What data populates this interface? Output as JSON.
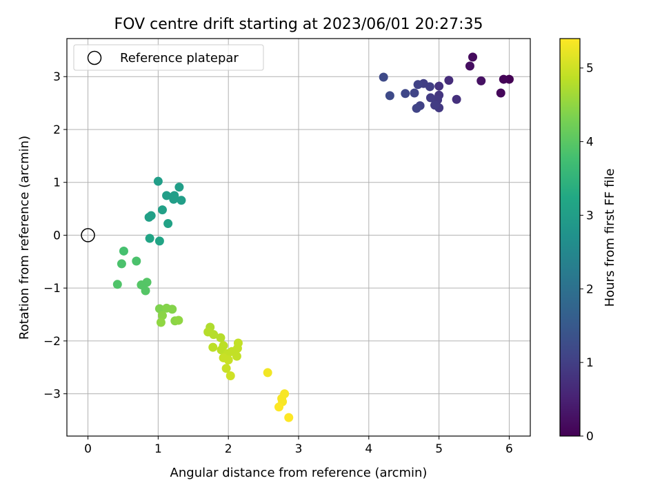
{
  "chart_data": {
    "type": "scatter",
    "title": "FOV centre drift starting at 2023/06/01 20:27:35",
    "xlabel": "Angular distance from reference (arcmin)",
    "ylabel": "Rotation from reference (arcmin)",
    "xlim": [
      -0.3,
      6.3
    ],
    "ylim": [
      -3.8,
      3.72
    ],
    "xticks": [
      0,
      1,
      2,
      3,
      4,
      5,
      6
    ],
    "yticks": [
      -3,
      -2,
      -1,
      0,
      1,
      2,
      3
    ],
    "xtick_labels": [
      "0",
      "1",
      "2",
      "3",
      "4",
      "5",
      "6"
    ],
    "ytick_labels": [
      "−3",
      "−2",
      "−1",
      "0",
      "1",
      "2",
      "3"
    ],
    "grid": true,
    "legend": {
      "position": "top-left",
      "entries": [
        {
          "label": "Reference platepar",
          "marker": "open-circle",
          "color": "#000000"
        }
      ]
    },
    "reference_point": {
      "x": 0,
      "y": 0
    },
    "colorbar": {
      "label": "Hours from first FF file",
      "colormap": "viridis",
      "range": [
        0,
        5.4
      ],
      "ticks": [
        0,
        1,
        2,
        3,
        4,
        5
      ],
      "tick_labels": [
        "0",
        "1",
        "2",
        "3",
        "4",
        "5"
      ]
    },
    "points": [
      {
        "x": 6.0,
        "y": 2.95,
        "t": 0.0
      },
      {
        "x": 5.92,
        "y": 2.95,
        "t": 0.05
      },
      {
        "x": 5.88,
        "y": 2.69,
        "t": 0.1
      },
      {
        "x": 5.48,
        "y": 3.37,
        "t": 0.15
      },
      {
        "x": 5.44,
        "y": 3.2,
        "t": 0.2
      },
      {
        "x": 5.6,
        "y": 2.92,
        "t": 0.25
      },
      {
        "x": 5.14,
        "y": 2.93,
        "t": 0.7
      },
      {
        "x": 5.25,
        "y": 2.57,
        "t": 0.75
      },
      {
        "x": 5.0,
        "y": 2.82,
        "t": 0.8
      },
      {
        "x": 5.0,
        "y": 2.65,
        "t": 0.85
      },
      {
        "x": 4.98,
        "y": 2.56,
        "t": 0.9
      },
      {
        "x": 5.0,
        "y": 2.41,
        "t": 0.9
      },
      {
        "x": 4.94,
        "y": 2.46,
        "t": 0.95
      },
      {
        "x": 4.88,
        "y": 2.6,
        "t": 0.95
      },
      {
        "x": 4.87,
        "y": 2.81,
        "t": 1.0
      },
      {
        "x": 4.78,
        "y": 2.87,
        "t": 1.0
      },
      {
        "x": 4.7,
        "y": 2.85,
        "t": 1.05
      },
      {
        "x": 4.73,
        "y": 2.45,
        "t": 1.05
      },
      {
        "x": 4.68,
        "y": 2.4,
        "t": 1.1
      },
      {
        "x": 4.65,
        "y": 2.69,
        "t": 1.1
      },
      {
        "x": 4.52,
        "y": 2.68,
        "t": 1.15
      },
      {
        "x": 4.3,
        "y": 2.64,
        "t": 1.2
      },
      {
        "x": 4.21,
        "y": 2.99,
        "t": 1.2
      },
      {
        "x": 1.0,
        "y": 1.02,
        "t": 3.0
      },
      {
        "x": 1.3,
        "y": 0.91,
        "t": 3.0
      },
      {
        "x": 1.23,
        "y": 0.75,
        "t": 3.0
      },
      {
        "x": 1.12,
        "y": 0.75,
        "t": 3.0
      },
      {
        "x": 1.22,
        "y": 0.68,
        "t": 3.0
      },
      {
        "x": 1.33,
        "y": 0.66,
        "t": 3.0
      },
      {
        "x": 1.06,
        "y": 0.48,
        "t": 3.05
      },
      {
        "x": 0.9,
        "y": 0.37,
        "t": 3.05
      },
      {
        "x": 0.87,
        "y": 0.34,
        "t": 3.05
      },
      {
        "x": 1.14,
        "y": 0.22,
        "t": 3.1
      },
      {
        "x": 0.88,
        "y": -0.06,
        "t": 3.15
      },
      {
        "x": 1.02,
        "y": -0.11,
        "t": 3.15
      },
      {
        "x": 0.51,
        "y": -0.3,
        "t": 3.8
      },
      {
        "x": 0.69,
        "y": -0.49,
        "t": 3.85
      },
      {
        "x": 0.48,
        "y": -0.54,
        "t": 3.85
      },
      {
        "x": 0.42,
        "y": -0.93,
        "t": 3.9
      },
      {
        "x": 0.84,
        "y": -0.89,
        "t": 3.95
      },
      {
        "x": 0.76,
        "y": -0.94,
        "t": 3.95
      },
      {
        "x": 0.82,
        "y": -1.05,
        "t": 3.95
      },
      {
        "x": 1.02,
        "y": -1.39,
        "t": 4.35
      },
      {
        "x": 1.12,
        "y": -1.38,
        "t": 4.4
      },
      {
        "x": 1.2,
        "y": -1.4,
        "t": 4.4
      },
      {
        "x": 1.06,
        "y": -1.52,
        "t": 4.45
      },
      {
        "x": 1.24,
        "y": -1.62,
        "t": 4.45
      },
      {
        "x": 1.29,
        "y": -1.61,
        "t": 4.5
      },
      {
        "x": 1.04,
        "y": -1.65,
        "t": 4.5
      },
      {
        "x": 1.74,
        "y": -1.74,
        "t": 4.75
      },
      {
        "x": 1.71,
        "y": -1.83,
        "t": 4.8
      },
      {
        "x": 1.79,
        "y": -1.88,
        "t": 4.8
      },
      {
        "x": 1.89,
        "y": -1.94,
        "t": 4.8
      },
      {
        "x": 1.78,
        "y": -2.12,
        "t": 4.85
      },
      {
        "x": 1.93,
        "y": -2.09,
        "t": 4.85
      },
      {
        "x": 1.9,
        "y": -2.17,
        "t": 4.85
      },
      {
        "x": 2.14,
        "y": -2.04,
        "t": 4.9
      },
      {
        "x": 2.13,
        "y": -2.14,
        "t": 4.9
      },
      {
        "x": 2.05,
        "y": -2.2,
        "t": 4.9
      },
      {
        "x": 1.99,
        "y": -2.24,
        "t": 4.9
      },
      {
        "x": 2.12,
        "y": -2.29,
        "t": 4.9
      },
      {
        "x": 1.93,
        "y": -2.32,
        "t": 4.95
      },
      {
        "x": 2.0,
        "y": -2.36,
        "t": 4.95
      },
      {
        "x": 1.97,
        "y": -2.52,
        "t": 4.95
      },
      {
        "x": 2.03,
        "y": -2.66,
        "t": 5.0
      },
      {
        "x": 2.56,
        "y": -2.6,
        "t": 5.3
      },
      {
        "x": 2.8,
        "y": -3.0,
        "t": 5.35
      },
      {
        "x": 2.76,
        "y": -3.09,
        "t": 5.35
      },
      {
        "x": 2.77,
        "y": -3.15,
        "t": 5.35
      },
      {
        "x": 2.72,
        "y": -3.25,
        "t": 5.4
      },
      {
        "x": 2.86,
        "y": -3.45,
        "t": 5.4
      }
    ]
  }
}
